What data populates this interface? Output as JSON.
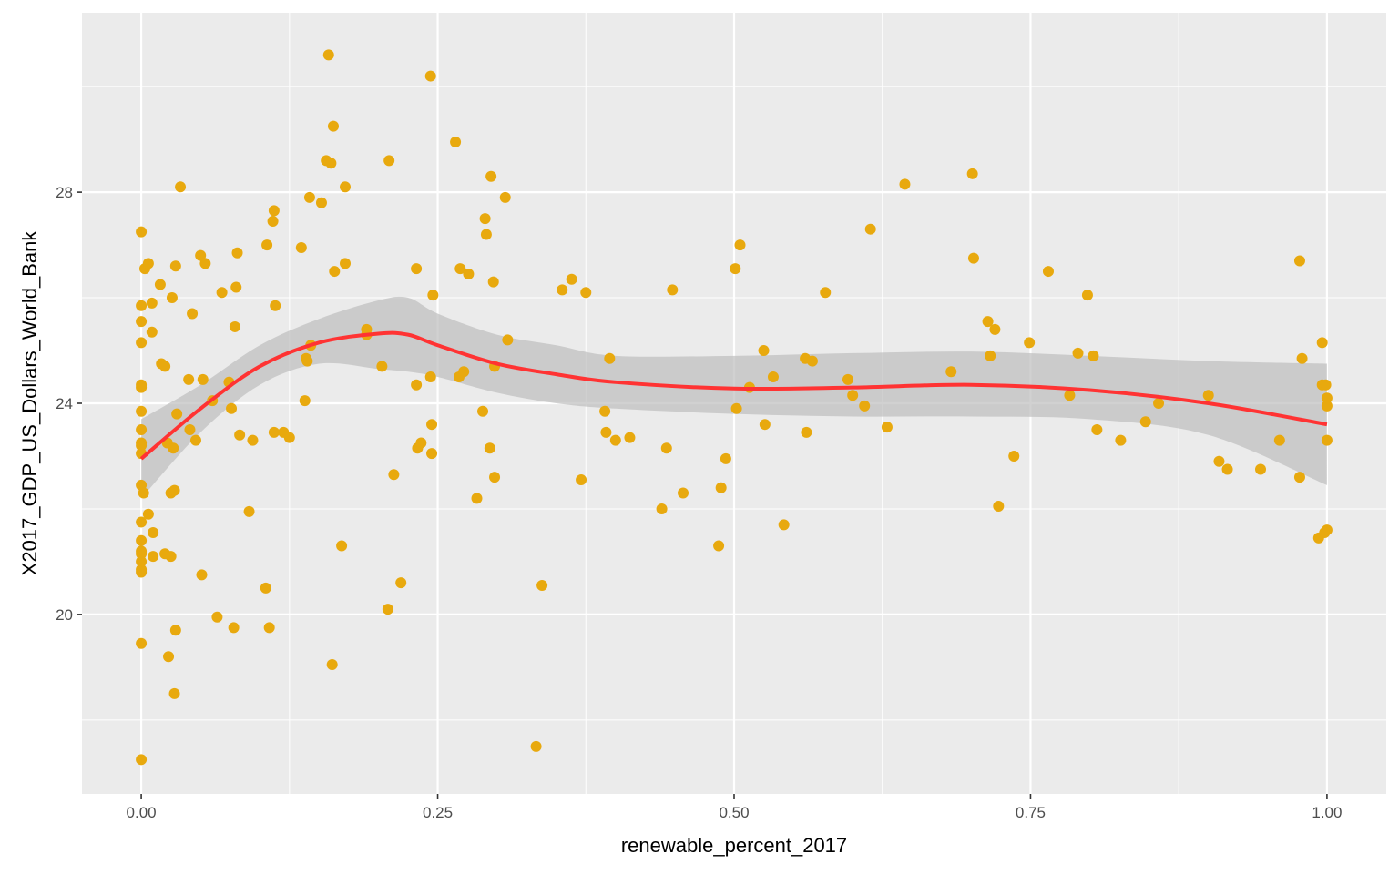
{
  "chart_data": {
    "type": "scatter",
    "xlabel": "renewable_percent_2017",
    "ylabel": "X2017_GDP_US_Dollars_World_Bank",
    "xlim": [
      -0.05,
      1.05
    ],
    "ylim": [
      16.6,
      31.4
    ],
    "x_ticks": [
      0.0,
      0.25,
      0.5,
      0.75,
      1.0
    ],
    "x_tick_labels": [
      "0.00",
      "0.25",
      "0.50",
      "0.75",
      "1.00"
    ],
    "y_ticks": [
      20,
      24,
      28
    ],
    "y_tick_labels": [
      "20",
      "24",
      "28"
    ],
    "grid": true,
    "colors": {
      "panel_background": "#ebebeb",
      "grid": "#ffffff",
      "points": "#e8a90e",
      "smooth_line": "#ff3333",
      "confidence_band": "#bdbdbd"
    },
    "points": [
      [
        0.0,
        27.25
      ],
      [
        0.0,
        25.85
      ],
      [
        0.0,
        25.55
      ],
      [
        0.0,
        25.15
      ],
      [
        0.0,
        24.35
      ],
      [
        0.0,
        24.3
      ],
      [
        0.0,
        23.85
      ],
      [
        0.0,
        23.5
      ],
      [
        0.0,
        23.25
      ],
      [
        0.0,
        23.2
      ],
      [
        0.0,
        23.05
      ],
      [
        0.0,
        22.45
      ],
      [
        0.0,
        21.75
      ],
      [
        0.0,
        21.4
      ],
      [
        0.0,
        21.2
      ],
      [
        0.0,
        21.15
      ],
      [
        0.0,
        21.0
      ],
      [
        0.0,
        20.85
      ],
      [
        0.0,
        20.8
      ],
      [
        0.0,
        19.45
      ],
      [
        0.0,
        17.25
      ],
      [
        0.002,
        22.3
      ],
      [
        0.003,
        26.55
      ],
      [
        0.006,
        26.65
      ],
      [
        0.006,
        21.9
      ],
      [
        0.009,
        25.35
      ],
      [
        0.009,
        25.9
      ],
      [
        0.01,
        21.55
      ],
      [
        0.01,
        21.1
      ],
      [
        0.016,
        26.25
      ],
      [
        0.017,
        24.75
      ],
      [
        0.02,
        24.7
      ],
      [
        0.02,
        21.15
      ],
      [
        0.022,
        23.25
      ],
      [
        0.023,
        19.2
      ],
      [
        0.025,
        22.3
      ],
      [
        0.025,
        21.1
      ],
      [
        0.026,
        26.0
      ],
      [
        0.027,
        23.15
      ],
      [
        0.028,
        22.35
      ],
      [
        0.028,
        18.5
      ],
      [
        0.029,
        26.6
      ],
      [
        0.029,
        19.7
      ],
      [
        0.03,
        23.8
      ],
      [
        0.033,
        28.1
      ],
      [
        0.04,
        24.45
      ],
      [
        0.041,
        23.5
      ],
      [
        0.043,
        25.7
      ],
      [
        0.046,
        23.3
      ],
      [
        0.05,
        26.8
      ],
      [
        0.051,
        20.75
      ],
      [
        0.052,
        24.45
      ],
      [
        0.054,
        26.65
      ],
      [
        0.06,
        24.05
      ],
      [
        0.064,
        19.95
      ],
      [
        0.068,
        26.1
      ],
      [
        0.074,
        24.4
      ],
      [
        0.076,
        23.9
      ],
      [
        0.078,
        19.75
      ],
      [
        0.079,
        25.45
      ],
      [
        0.08,
        26.2
      ],
      [
        0.081,
        26.85
      ],
      [
        0.083,
        23.4
      ],
      [
        0.091,
        21.95
      ],
      [
        0.094,
        23.3
      ],
      [
        0.105,
        20.5
      ],
      [
        0.106,
        27.0
      ],
      [
        0.108,
        19.75
      ],
      [
        0.111,
        27.45
      ],
      [
        0.112,
        27.65
      ],
      [
        0.112,
        23.45
      ],
      [
        0.113,
        25.85
      ],
      [
        0.12,
        23.45
      ],
      [
        0.125,
        23.35
      ],
      [
        0.135,
        26.95
      ],
      [
        0.138,
        24.05
      ],
      [
        0.139,
        24.85
      ],
      [
        0.14,
        24.8
      ],
      [
        0.142,
        27.9
      ],
      [
        0.143,
        25.1
      ],
      [
        0.152,
        27.8
      ],
      [
        0.156,
        28.6
      ],
      [
        0.158,
        30.6
      ],
      [
        0.16,
        28.55
      ],
      [
        0.161,
        19.05
      ],
      [
        0.162,
        29.25
      ],
      [
        0.163,
        26.5
      ],
      [
        0.169,
        21.3
      ],
      [
        0.172,
        28.1
      ],
      [
        0.172,
        26.65
      ],
      [
        0.19,
        25.4
      ],
      [
        0.19,
        25.3
      ],
      [
        0.203,
        24.7
      ],
      [
        0.208,
        20.1
      ],
      [
        0.209,
        28.6
      ],
      [
        0.213,
        22.65
      ],
      [
        0.219,
        20.6
      ],
      [
        0.232,
        26.55
      ],
      [
        0.232,
        24.35
      ],
      [
        0.233,
        23.15
      ],
      [
        0.236,
        23.25
      ],
      [
        0.244,
        30.2
      ],
      [
        0.244,
        24.5
      ],
      [
        0.245,
        23.6
      ],
      [
        0.245,
        23.05
      ],
      [
        0.246,
        26.05
      ],
      [
        0.265,
        28.95
      ],
      [
        0.268,
        24.5
      ],
      [
        0.269,
        26.55
      ],
      [
        0.272,
        24.6
      ],
      [
        0.276,
        26.45
      ],
      [
        0.283,
        22.2
      ],
      [
        0.288,
        23.85
      ],
      [
        0.29,
        27.5
      ],
      [
        0.291,
        27.2
      ],
      [
        0.294,
        23.15
      ],
      [
        0.295,
        28.3
      ],
      [
        0.297,
        26.3
      ],
      [
        0.298,
        24.7
      ],
      [
        0.298,
        22.6
      ],
      [
        0.307,
        27.9
      ],
      [
        0.309,
        25.2
      ],
      [
        0.333,
        17.5
      ],
      [
        0.338,
        20.55
      ],
      [
        0.355,
        26.15
      ],
      [
        0.363,
        26.35
      ],
      [
        0.371,
        22.55
      ],
      [
        0.375,
        26.1
      ],
      [
        0.391,
        23.85
      ],
      [
        0.392,
        23.45
      ],
      [
        0.395,
        24.85
      ],
      [
        0.4,
        23.3
      ],
      [
        0.412,
        23.35
      ],
      [
        0.439,
        22.0
      ],
      [
        0.443,
        23.15
      ],
      [
        0.448,
        26.15
      ],
      [
        0.457,
        22.3
      ],
      [
        0.487,
        21.3
      ],
      [
        0.489,
        22.4
      ],
      [
        0.493,
        22.95
      ],
      [
        0.501,
        26.55
      ],
      [
        0.502,
        23.9
      ],
      [
        0.505,
        27.0
      ],
      [
        0.513,
        24.3
      ],
      [
        0.525,
        25.0
      ],
      [
        0.526,
        23.6
      ],
      [
        0.533,
        24.5
      ],
      [
        0.542,
        21.7
      ],
      [
        0.56,
        24.85
      ],
      [
        0.561,
        23.45
      ],
      [
        0.566,
        24.8
      ],
      [
        0.577,
        26.1
      ],
      [
        0.596,
        24.45
      ],
      [
        0.6,
        24.15
      ],
      [
        0.61,
        23.95
      ],
      [
        0.615,
        27.3
      ],
      [
        0.629,
        23.55
      ],
      [
        0.644,
        28.15
      ],
      [
        0.683,
        24.6
      ],
      [
        0.701,
        28.35
      ],
      [
        0.702,
        26.75
      ],
      [
        0.714,
        25.55
      ],
      [
        0.716,
        24.9
      ],
      [
        0.72,
        25.4
      ],
      [
        0.723,
        22.05
      ],
      [
        0.736,
        23.0
      ],
      [
        0.749,
        25.15
      ],
      [
        0.765,
        26.5
      ],
      [
        0.783,
        24.15
      ],
      [
        0.79,
        24.95
      ],
      [
        0.798,
        26.05
      ],
      [
        0.803,
        24.9
      ],
      [
        0.806,
        23.5
      ],
      [
        0.826,
        23.3
      ],
      [
        0.847,
        23.65
      ],
      [
        0.858,
        24.0
      ],
      [
        0.9,
        24.15
      ],
      [
        0.909,
        22.9
      ],
      [
        0.916,
        22.75
      ],
      [
        0.944,
        22.75
      ],
      [
        0.96,
        23.3
      ],
      [
        0.977,
        26.7
      ],
      [
        0.977,
        22.6
      ],
      [
        0.979,
        24.85
      ],
      [
        0.993,
        21.45
      ],
      [
        0.996,
        25.15
      ],
      [
        0.996,
        24.35
      ],
      [
        0.998,
        21.55
      ],
      [
        0.999,
        24.35
      ],
      [
        1.0,
        24.1
      ],
      [
        1.0,
        23.95
      ],
      [
        1.0,
        23.3
      ],
      [
        1.0,
        21.6
      ]
    ],
    "smooth": {
      "x": [
        0.0,
        0.05,
        0.1,
        0.15,
        0.2,
        0.225,
        0.25,
        0.3,
        0.35,
        0.4,
        0.5,
        0.6,
        0.7,
        0.8,
        0.9,
        1.0
      ],
      "y": [
        22.95,
        23.9,
        24.7,
        25.15,
        25.32,
        25.3,
        25.1,
        24.75,
        24.55,
        24.4,
        24.28,
        24.3,
        24.35,
        24.25,
        24.0,
        23.6
      ],
      "lower": [
        22.2,
        23.45,
        24.35,
        24.75,
        24.65,
        24.6,
        24.5,
        24.2,
        24.0,
        23.9,
        23.8,
        23.75,
        23.75,
        23.7,
        23.4,
        22.45
      ],
      "upper": [
        23.7,
        24.35,
        25.1,
        25.6,
        25.95,
        26.0,
        25.7,
        25.3,
        25.1,
        24.9,
        24.9,
        24.95,
        24.98,
        24.9,
        24.8,
        24.75
      ]
    }
  }
}
